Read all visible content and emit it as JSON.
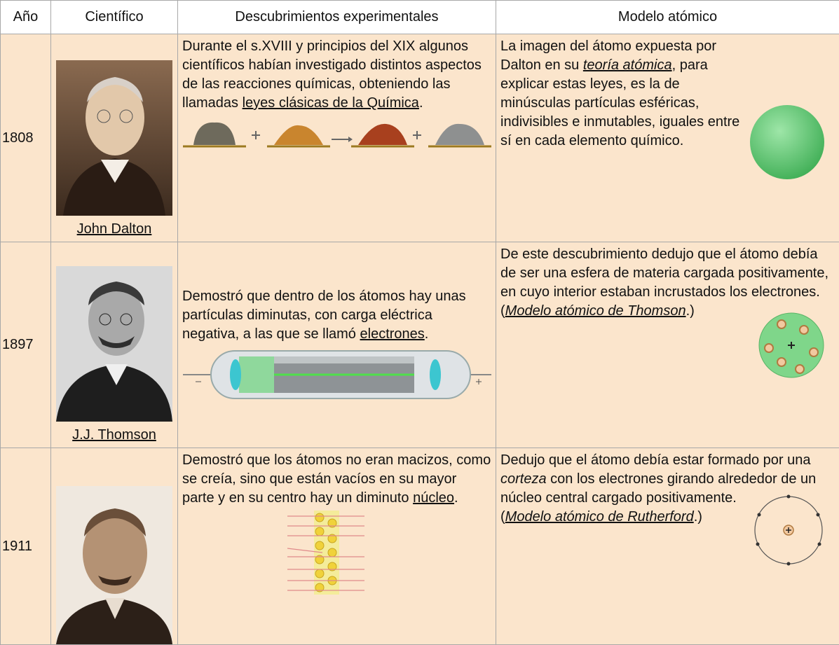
{
  "header": {
    "columns": [
      "Año",
      "Científico",
      "Descubrimientos experimentales",
      "Modelo atómico"
    ]
  },
  "rows": [
    {
      "year": "1808",
      "scientist": "John Dalton",
      "discovery": [
        "Durante el s.XVIII y principios del XIX algunos científicos habían investigado distintos aspectos de las reacciones químicas, obteniendo las llamadas ",
        "leyes clásicas de la Química",
        "."
      ],
      "model": [
        "La imagen del átomo expuesta por Dalton en su ",
        "teoría atómica",
        ", para explicar estas leyes, es la de minúsculas partículas esféricas, indivisibles e inmutables, iguales entre sí en cada elemento químico."
      ]
    },
    {
      "year": "1897",
      "scientist": "J.J. Thomson",
      "discovery": [
        "Demostró que dentro de los átomos hay unas partículas diminutas, con carga eléctrica negativa, a las que se llamó ",
        "electrones",
        "."
      ],
      "model": [
        "De este descubrimiento dedujo que el átomo debía de ser una esfera de materia cargada positivamente, en cuyo interior estaban incrustados los electrones.",
        "(",
        "Modelo atómico de Thomson",
        ".)"
      ]
    },
    {
      "year": "1911",
      "scientist": "",
      "discovery": [
        "Demostró que los átomos no eran macizos, como se creía, sino que están vacíos en su mayor parte y en su centro hay un diminuto ",
        "núcleo",
        "."
      ],
      "model": [
        "Dedujo que el átomo debía estar formado por una ",
        "corteza",
        " con los electrones girando alrededor de un núcleo central cargado positivamente.",
        "(",
        "Modelo atómico de Rutherford",
        ".)"
      ]
    }
  ]
}
